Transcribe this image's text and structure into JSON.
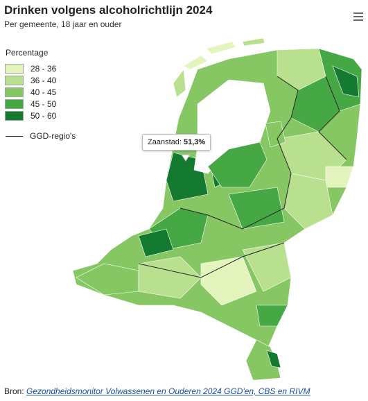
{
  "header": {
    "title": "Drinken volgens alcoholrichtlijn 2024",
    "subtitle": "Per gemeente, 18 jaar en ouder"
  },
  "legend": {
    "title": "Percentage",
    "items": [
      {
        "label": "28 - 36",
        "color": "#e4f4bd"
      },
      {
        "label": "36 - 40",
        "color": "#b9e08e"
      },
      {
        "label": "40 - 45",
        "color": "#86c764"
      },
      {
        "label": "45 - 50",
        "color": "#45a845"
      },
      {
        "label": "50 - 60",
        "color": "#137a2f"
      }
    ],
    "boundary": "GGD-regio's"
  },
  "tooltip": {
    "label": "Zaanstad:",
    "value": "51,3%"
  },
  "source": {
    "prefix": "Bron:",
    "link": "Gezondheidsmonitor Volwassenen en Ouderen 2024 GGD'en, CBS en RIVM"
  }
}
